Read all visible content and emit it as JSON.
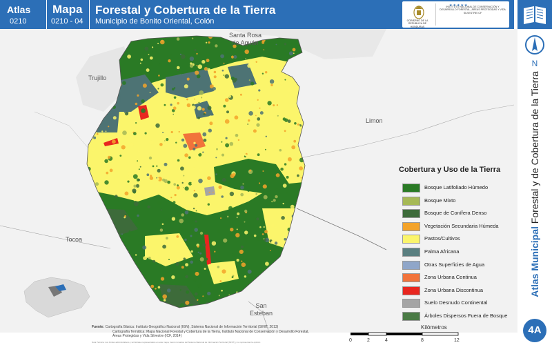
{
  "header": {
    "atlas_label": "Atlas",
    "atlas_code": "0210",
    "map_label": "Mapa",
    "map_code": "0210 - 04",
    "title": "Forestal y Cobertura de la Tierra",
    "subtitle": "Municipio de Bonito Oriental, Colón",
    "logo_left_text": "GOBIERNO DE LA REPÚBLICA DE HONDURAS",
    "logo_right_text": "INSTITUTO NACIONAL DE CONSERVACIÓN Y DESARROLLO FORESTAL, ÁREAS PROTEGIDAS Y VIDA SILVESTRE ICF"
  },
  "map": {
    "places": [
      {
        "id": "santa-rosa",
        "name": "Santa Rosa\nde Aguán"
      },
      {
        "id": "trujillo",
        "name": "Trujillo"
      },
      {
        "id": "limon",
        "name": "Limon"
      },
      {
        "id": "tocoa",
        "name": "Tocoa"
      },
      {
        "id": "san-esteban",
        "name": "San\nEsteban"
      }
    ],
    "north_label": "N"
  },
  "legend": {
    "title": "Cobertura y Uso de la Tierra",
    "items": [
      {
        "label": "Bosque Latifoliado Húmedo",
        "color": "#2a7a25"
      },
      {
        "label": "Bosque Mixto",
        "color": "#a6b956"
      },
      {
        "label": "Bosque de Conífera Denso",
        "color": "#3d6b3a"
      },
      {
        "label": "Vegetación Secundaria Húmeda",
        "color": "#f3a32a"
      },
      {
        "label": "Pastos/Cultivos",
        "color": "#fbf56b"
      },
      {
        "label": "Palma Africana",
        "color": "#5a7f80"
      },
      {
        "label": "Otras Superficies de Agua",
        "color": "#8fa6c9"
      },
      {
        "label": "Zona Urbana Continua",
        "color": "#f1733b"
      },
      {
        "label": "Zona Urbana Discontinua",
        "color": "#e8261f"
      },
      {
        "label": "Suelo Desnudo Continental",
        "color": "#a5a5a5"
      },
      {
        "label": "Árboles Dispersos Fuera de Bosque",
        "color": "#4a7b45"
      }
    ]
  },
  "sidebar": {
    "title_bold": "Atlas Municipal",
    "title_rest": "Forestal y de Cobertura de la Tierra",
    "badge": "4A"
  },
  "sources": {
    "label": "Fuente:",
    "lines": [
      "Cartografía Básica: Instituto Geográfico Nacional (IGN), Sistema Nacional de Información Territorial (SINIT, 2013)",
      "Cartografía Temática: Mapa Nacional Forestal y Cobertura de la Tierra, Instituto Nacional de Conservación y Desarrollo Forestal,",
      "Áreas Protegidas y Vida Silvestre (ICF, 2014)"
    ],
    "notes": "Nota Técnica: Los límites administrativos y territoriales representados en este mapa, fueron tomados del Sistema Nacional de Información Territorial (SINIT) y no representan la opinión"
  },
  "scale": {
    "unit": "Kilómetros",
    "ticks": [
      "0",
      "2",
      "4",
      "8",
      "12"
    ]
  },
  "colors": {
    "brand_blue": "#2c6fb7",
    "palm_dark": "#4d7374"
  }
}
